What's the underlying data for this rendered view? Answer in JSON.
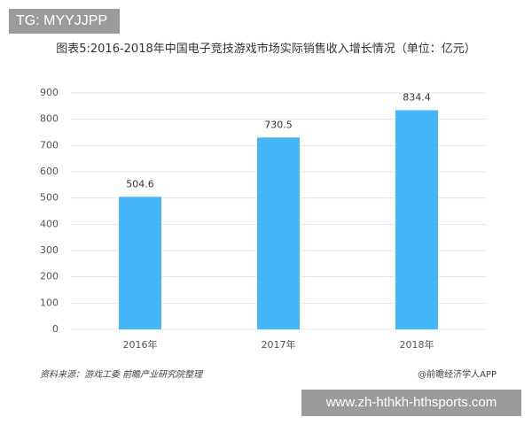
{
  "header_tag": "TG: MYYJJPP",
  "footer_url": "www.zh-hthkh-hthsports.com",
  "chart_data": {
    "type": "bar",
    "title": "图表5:2016-2018年中国电子竞技游戏市场实际销售收入增长情况（单位：亿元）",
    "categories": [
      "2016年",
      "2017年",
      "2018年"
    ],
    "values": [
      504.6,
      730.5,
      834.4
    ],
    "color": "#45b6f7",
    "ylim": [
      0,
      900
    ],
    "yticks": [
      0,
      100,
      200,
      300,
      400,
      500,
      600,
      700,
      800,
      900
    ],
    "grid": true,
    "source": "资料来源：游戏工委 前瞻产业研究院整理",
    "credit": "@前瞻经济学人APP"
  }
}
